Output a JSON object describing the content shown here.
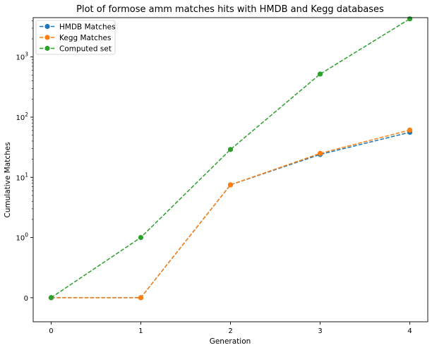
{
  "chart_data": {
    "type": "line",
    "title": "Plot of formose amm matches hits with HMDB and Kegg databases",
    "xlabel": "Generation",
    "ylabel": "Cumulative Matches",
    "yscale": "symlog",
    "linestyle": "dashed",
    "marker": "circle",
    "grid": false,
    "legend": "top-left",
    "x": [
      0,
      1,
      2,
      3,
      4
    ],
    "xlim": [
      -0.2,
      4.2
    ],
    "ylim": [
      -0.4,
      4500
    ],
    "x_ticks": [
      {
        "value": 0,
        "label": "0"
      },
      {
        "value": 1,
        "label": "1"
      },
      {
        "value": 2,
        "label": "2"
      },
      {
        "value": 3,
        "label": "3"
      },
      {
        "value": 4,
        "label": "4"
      }
    ],
    "y_ticks": [
      {
        "value": 0,
        "label": "0",
        "sup": ""
      },
      {
        "value": 1,
        "label": "10",
        "sup": "0"
      },
      {
        "value": 10,
        "label": "10",
        "sup": "1"
      },
      {
        "value": 100,
        "label": "10",
        "sup": "2"
      },
      {
        "value": 1000,
        "label": "10",
        "sup": "3"
      }
    ],
    "series": [
      {
        "name": "HMDB Matches",
        "color": "#1f77b4",
        "values": [
          0,
          0,
          7.5,
          24,
          56
        ]
      },
      {
        "name": "Kegg Matches",
        "color": "#ff7f0e",
        "values": [
          0,
          0,
          7.5,
          25,
          61
        ]
      },
      {
        "name": "Computed set",
        "color": "#2ca02c",
        "values": [
          0,
          1,
          29,
          520,
          4300
        ]
      }
    ]
  }
}
